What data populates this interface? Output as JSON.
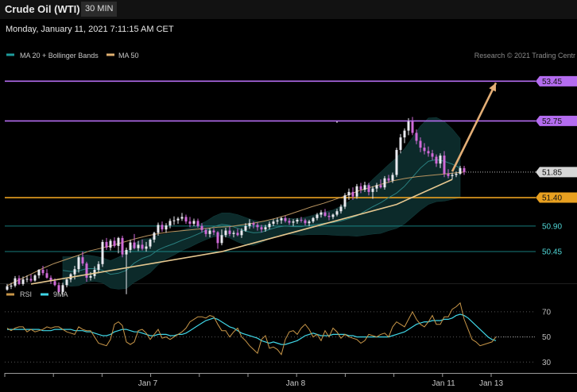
{
  "header": {
    "title": "Crude Oil (WTI)",
    "timeframe": "30 MIN",
    "datetime": "Monday, January 11, 2021 7:11:15 AM CET"
  },
  "legend": {
    "main": [
      {
        "label": "MA 20 + Bollinger Bands",
        "color": "#1e9c9c"
      },
      {
        "label": "MA 50",
        "color": "#e0b070"
      }
    ],
    "rsi": [
      {
        "label": "RSI",
        "color": "#c89648"
      },
      {
        "label": "9MA",
        "color": "#3fd6e6"
      }
    ]
  },
  "watermark": "Research © 2021 Trading Centr",
  "colors": {
    "bull": "#eaeaf0",
    "bear": "#d06ad8",
    "band_fill": "#0c2a2a",
    "resistance": "#b46cf0",
    "support": "#e8a020",
    "cyan_level": "#1e9c9c",
    "trend": "#e6c890",
    "arrow": "#e3ae76"
  },
  "chart_data": [
    {
      "type": "candlestick",
      "title": "Crude Oil (WTI)",
      "interval": "30 MIN",
      "x_ticks": [
        "Jan 7",
        "Jan 8",
        "Jan 11",
        "Jan 13"
      ],
      "y_range": [
        49.85,
        53.65
      ],
      "price_labels": [
        53.45,
        52.75,
        51.85,
        51.4,
        50.9,
        50.45
      ],
      "levels": [
        {
          "name": "resistance-1",
          "value": 53.45,
          "label": "53.45",
          "style": "purple"
        },
        {
          "name": "resistance-2",
          "value": 52.75,
          "label": "52.75",
          "style": "purple"
        },
        {
          "name": "last-price",
          "value": 51.85,
          "label": "51.85",
          "style": "grey-dotted"
        },
        {
          "name": "support-1",
          "value": 51.4,
          "label": "51.40",
          "style": "orange"
        },
        {
          "name": "support-2",
          "value": 50.9,
          "label": "50.90",
          "style": "cyan"
        },
        {
          "name": "support-3",
          "value": 50.45,
          "label": "50.45",
          "style": "cyan"
        }
      ],
      "trendline": [
        [
          6,
          49.88
        ],
        [
          54,
          50.45
        ],
        [
          98,
          51.28
        ],
        [
          112,
          51.72
        ]
      ],
      "projection_arrow": {
        "from": [
          112,
          51.86
        ],
        "to": [
          123,
          53.42
        ]
      },
      "candles_ohlc": [
        [
          49.78,
          49.88,
          49.76,
          49.84
        ],
        [
          49.84,
          49.9,
          49.79,
          49.85
        ],
        [
          49.85,
          50.02,
          49.82,
          49.98
        ],
        [
          49.98,
          50.03,
          49.86,
          49.88
        ],
        [
          49.88,
          50.01,
          49.85,
          49.96
        ],
        [
          49.96,
          50.03,
          49.91,
          49.97
        ],
        [
          49.97,
          50.05,
          49.91,
          49.94
        ],
        [
          49.94,
          50.05,
          49.92,
          50.03
        ],
        [
          50.03,
          50.14,
          49.98,
          50.13
        ],
        [
          50.13,
          50.2,
          50.03,
          50.07
        ],
        [
          50.07,
          50.14,
          49.97,
          49.99
        ],
        [
          49.99,
          50.03,
          49.88,
          49.93
        ],
        [
          49.93,
          49.98,
          49.84,
          49.86
        ],
        [
          49.86,
          49.91,
          49.72,
          49.74
        ],
        [
          49.74,
          49.9,
          49.69,
          49.86
        ],
        [
          49.86,
          49.99,
          49.82,
          49.96
        ],
        [
          49.96,
          50.07,
          49.91,
          50.05
        ],
        [
          50.05,
          50.2,
          49.96,
          50.14
        ],
        [
          50.14,
          50.38,
          50.08,
          50.35
        ],
        [
          50.35,
          50.45,
          50.2,
          50.24
        ],
        [
          50.24,
          50.27,
          49.92,
          49.99
        ],
        [
          49.99,
          50.09,
          49.94,
          50.02
        ],
        [
          50.02,
          50.19,
          49.97,
          50.13
        ],
        [
          50.13,
          50.28,
          50.07,
          50.23
        ],
        [
          50.23,
          50.66,
          50.18,
          50.62
        ],
        [
          50.62,
          50.69,
          50.48,
          50.52
        ],
        [
          50.52,
          50.67,
          50.47,
          50.64
        ],
        [
          50.64,
          50.7,
          50.52,
          50.55
        ],
        [
          50.55,
          50.71,
          50.42,
          50.69
        ],
        [
          50.69,
          50.73,
          50.35,
          50.4
        ],
        [
          50.4,
          50.52,
          49.7,
          50.48
        ],
        [
          50.48,
          50.66,
          50.43,
          50.61
        ],
        [
          50.61,
          50.76,
          50.49,
          50.51
        ],
        [
          50.51,
          50.64,
          50.46,
          50.57
        ],
        [
          50.57,
          50.66,
          50.47,
          50.5
        ],
        [
          50.5,
          50.62,
          50.45,
          50.54
        ],
        [
          50.54,
          50.68,
          50.5,
          50.66
        ],
        [
          50.66,
          50.8,
          50.61,
          50.78
        ],
        [
          50.78,
          50.96,
          50.73,
          50.92
        ],
        [
          50.92,
          50.98,
          50.8,
          50.84
        ],
        [
          50.84,
          50.95,
          50.78,
          50.91
        ],
        [
          50.91,
          51.03,
          50.86,
          50.99
        ],
        [
          50.99,
          51.07,
          50.92,
          51.0
        ],
        [
          51.0,
          51.06,
          50.94,
          51.03
        ],
        [
          51.03,
          51.13,
          50.99,
          51.06
        ],
        [
          51.06,
          51.1,
          50.94,
          50.98
        ],
        [
          50.98,
          51.06,
          50.88,
          50.94
        ],
        [
          50.94,
          51.03,
          50.9,
          50.99
        ],
        [
          50.99,
          51.03,
          50.87,
          50.9
        ],
        [
          50.9,
          50.95,
          50.79,
          50.83
        ],
        [
          50.83,
          50.86,
          50.71,
          50.76
        ],
        [
          50.76,
          50.86,
          50.7,
          50.82
        ],
        [
          50.82,
          50.86,
          50.74,
          50.79
        ],
        [
          50.79,
          50.81,
          50.5,
          50.6
        ],
        [
          50.6,
          50.84,
          50.56,
          50.74
        ],
        [
          50.74,
          50.87,
          50.7,
          50.82
        ],
        [
          50.82,
          50.89,
          50.72,
          50.76
        ],
        [
          50.76,
          50.82,
          50.7,
          50.78
        ],
        [
          50.78,
          50.85,
          50.72,
          50.74
        ],
        [
          50.74,
          50.86,
          50.69,
          50.82
        ],
        [
          50.82,
          50.95,
          50.8,
          50.9
        ],
        [
          50.9,
          51.02,
          50.85,
          50.95
        ],
        [
          50.95,
          50.98,
          50.86,
          50.92
        ],
        [
          50.92,
          50.96,
          50.82,
          50.88
        ],
        [
          50.88,
          50.92,
          50.79,
          50.84
        ],
        [
          50.84,
          50.92,
          50.8,
          50.88
        ],
        [
          50.88,
          50.98,
          50.84,
          50.94
        ],
        [
          50.94,
          51.02,
          50.9,
          50.98
        ],
        [
          50.98,
          51.05,
          50.93,
          51.0
        ],
        [
          51.0,
          51.06,
          50.94,
          51.04
        ],
        [
          51.04,
          51.08,
          50.96,
          50.99
        ],
        [
          50.99,
          51.04,
          50.92,
          50.96
        ],
        [
          50.96,
          51.02,
          50.9,
          50.98
        ],
        [
          50.98,
          51.04,
          50.94,
          51.01
        ],
        [
          51.01,
          51.06,
          50.96,
          51.0
        ],
        [
          51.0,
          51.03,
          50.91,
          50.95
        ],
        [
          50.95,
          51.01,
          50.9,
          50.98
        ],
        [
          50.98,
          51.06,
          50.95,
          51.04
        ],
        [
          51.04,
          51.13,
          51.0,
          51.1
        ],
        [
          51.1,
          51.18,
          51.05,
          51.14
        ],
        [
          51.14,
          51.2,
          51.06,
          51.08
        ],
        [
          51.08,
          51.14,
          51.0,
          51.06
        ],
        [
          51.06,
          51.12,
          51.02,
          51.1
        ],
        [
          51.1,
          51.2,
          51.07,
          51.16
        ],
        [
          51.16,
          51.28,
          51.12,
          51.24
        ],
        [
          51.24,
          51.48,
          51.2,
          51.44
        ],
        [
          51.44,
          51.56,
          51.36,
          51.5
        ],
        [
          51.5,
          51.58,
          51.36,
          51.42
        ],
        [
          51.42,
          51.64,
          51.38,
          51.6
        ],
        [
          51.6,
          51.66,
          51.48,
          51.54
        ],
        [
          51.54,
          51.68,
          51.5,
          51.62
        ],
        [
          51.62,
          51.66,
          51.44,
          51.5
        ],
        [
          51.5,
          51.6,
          51.38,
          51.56
        ],
        [
          51.56,
          51.66,
          51.5,
          51.62
        ],
        [
          51.62,
          51.72,
          51.56,
          51.58
        ],
        [
          51.58,
          51.78,
          51.54,
          51.74
        ],
        [
          51.74,
          51.8,
          51.66,
          51.7
        ],
        [
          51.7,
          51.84,
          51.66,
          51.8
        ],
        [
          51.8,
          52.28,
          51.76,
          52.24
        ],
        [
          52.24,
          52.52,
          52.18,
          52.46
        ],
        [
          52.46,
          52.62,
          52.36,
          52.58
        ],
        [
          52.58,
          52.8,
          52.5,
          52.74
        ],
        [
          52.74,
          52.82,
          52.5,
          52.54
        ],
        [
          52.54,
          52.6,
          52.34,
          52.4
        ],
        [
          52.4,
          52.46,
          52.2,
          52.28
        ],
        [
          52.28,
          52.36,
          52.16,
          52.22
        ],
        [
          52.22,
          52.3,
          52.12,
          52.18
        ],
        [
          52.18,
          52.24,
          52.06,
          52.12
        ],
        [
          52.12,
          52.16,
          51.94,
          52.0
        ],
        [
          52.0,
          52.18,
          51.92,
          52.14
        ],
        [
          52.14,
          52.22,
          51.76,
          51.82
        ],
        [
          51.82,
          51.9,
          51.74,
          51.78
        ],
        [
          51.78,
          51.84,
          51.72,
          51.8
        ],
        [
          51.8,
          51.86,
          51.76,
          51.82
        ],
        [
          51.82,
          51.96,
          51.8,
          51.92
        ],
        [
          51.92,
          51.96,
          51.8,
          51.85
        ]
      ],
      "ma20": [
        50.12,
        50.1,
        50.11,
        50.15,
        50.15,
        50.12,
        50.05,
        50.07,
        50.12,
        50.25,
        50.33,
        50.38,
        50.48,
        50.54,
        50.59,
        50.65,
        50.7,
        50.76,
        50.82,
        50.89,
        50.93,
        50.91,
        50.86,
        50.81,
        50.78,
        50.79,
        50.84,
        50.88,
        50.9,
        50.89,
        50.89,
        50.91,
        50.93,
        50.95,
        50.96,
        50.99,
        51.03,
        51.08,
        51.16,
        51.24,
        51.31,
        51.4,
        51.48,
        51.6,
        51.76,
        51.92,
        52.04,
        52.07,
        52.04,
        51.99,
        51.92
      ],
      "ma50": [
        49.85,
        49.95,
        50.05,
        50.15,
        50.24,
        50.31,
        50.38,
        50.46,
        50.51,
        50.56,
        50.62,
        50.68,
        50.73,
        50.77,
        50.8,
        50.82,
        50.84,
        50.86,
        50.88,
        50.89,
        50.92,
        50.95,
        50.99,
        51.04,
        51.1,
        51.17,
        51.24,
        51.3,
        51.37,
        51.44,
        51.52,
        51.58,
        51.64,
        51.7,
        51.74,
        51.77,
        51.79,
        51.81,
        51.83,
        51.85
      ],
      "bollinger_width": [
        0.24,
        0.26,
        0.26,
        0.24,
        0.22,
        0.22,
        0.24,
        0.28,
        0.32,
        0.34,
        0.34,
        0.3,
        0.26,
        0.22,
        0.2,
        0.18,
        0.17,
        0.16,
        0.16,
        0.18,
        0.2,
        0.22,
        0.24,
        0.24,
        0.22,
        0.18,
        0.16,
        0.14,
        0.14,
        0.14,
        0.15,
        0.16,
        0.18,
        0.2,
        0.22,
        0.26,
        0.3,
        0.36,
        0.42,
        0.48,
        0.54,
        0.58,
        0.62,
        0.66,
        0.7,
        0.74,
        0.76,
        0.74,
        0.7,
        0.62,
        0.52
      ]
    },
    {
      "type": "line",
      "title": "RSI",
      "y_range": [
        22,
        80
      ],
      "levels": [
        70,
        50,
        30
      ],
      "series": [
        {
          "name": "RSI",
          "values": [
            57,
            55,
            57,
            58,
            58,
            54,
            56,
            54,
            55,
            56,
            58,
            57,
            58,
            58,
            56,
            54,
            53,
            52,
            58,
            56,
            55,
            55,
            50,
            45,
            44,
            43,
            48,
            60,
            62,
            59,
            46,
            44,
            46,
            55,
            56,
            53,
            48,
            52,
            56,
            49,
            50,
            48,
            50,
            52,
            54,
            57,
            62,
            64,
            66,
            66,
            65,
            67,
            66,
            60,
            55,
            55,
            50,
            54,
            57,
            50,
            47,
            43,
            40,
            37,
            48,
            51,
            41,
            42,
            40,
            36,
            48,
            54,
            55,
            52,
            57,
            60,
            56,
            50,
            52,
            47,
            55,
            50,
            57,
            54,
            49,
            52,
            50,
            49,
            48,
            45,
            47,
            52,
            51,
            50,
            52,
            53,
            50,
            58,
            62,
            60,
            58,
            64,
            70,
            64,
            60,
            58,
            62,
            67,
            60,
            60,
            66,
            66,
            72,
            74,
            77,
            64,
            56,
            48,
            46,
            43,
            44,
            45,
            46,
            50
          ]
        },
        {
          "name": "9MA",
          "values": [
            56,
            56,
            56,
            56,
            56,
            56,
            56,
            56,
            56,
            55,
            55,
            55,
            56,
            56,
            56,
            56,
            56,
            55,
            55,
            55,
            54,
            54,
            53,
            52,
            51,
            51,
            52,
            54,
            55,
            56,
            56,
            55,
            54,
            54,
            53,
            52,
            51,
            51,
            52,
            52,
            52,
            51,
            51,
            52,
            52,
            53,
            55,
            57,
            59,
            61,
            63,
            64,
            65,
            64,
            62,
            60,
            58,
            57,
            55,
            53,
            52,
            51,
            50,
            49,
            47,
            46,
            45,
            46,
            45,
            44,
            44,
            45,
            46,
            47,
            49,
            51,
            52,
            53,
            52,
            51,
            51,
            51,
            52,
            52,
            52,
            52,
            51,
            51,
            50,
            50,
            50,
            50,
            50,
            50,
            50,
            50,
            50,
            51,
            52,
            53,
            54,
            56,
            58,
            60,
            61,
            62,
            62,
            63,
            63,
            63,
            64,
            64,
            65,
            67,
            68,
            67,
            65,
            62,
            59,
            56,
            53,
            50,
            48,
            47
          ]
        }
      ]
    }
  ]
}
